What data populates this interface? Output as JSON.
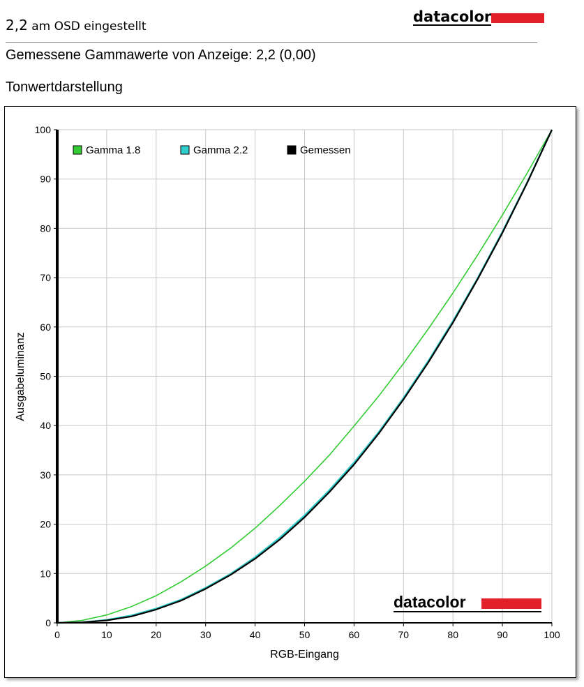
{
  "header": {
    "osd_value": "2,2",
    "osd_text": " am OSD eingestellt",
    "brand": "datacolor",
    "gamma_measured": "Gemessene Gammawerte von Anzeige: 2,2 (0,00)",
    "section_title": "Tonwertdarstellung"
  },
  "chart_data": {
    "type": "line",
    "xlabel": "RGB-Eingang",
    "ylabel": "Ausgabeluminanz",
    "xlim": [
      0,
      100
    ],
    "ylim": [
      0,
      100
    ],
    "xticks": [
      "0",
      "10",
      "20",
      "30",
      "40",
      "50",
      "60",
      "70",
      "80",
      "90",
      "100"
    ],
    "yticks": [
      "0",
      "10",
      "20",
      "30",
      "40",
      "50",
      "60",
      "70",
      "80",
      "90",
      "100"
    ],
    "grid": true,
    "legend_position": "top-left",
    "watermark": "datacolor",
    "x": [
      0,
      5,
      10,
      15,
      20,
      25,
      30,
      35,
      40,
      45,
      50,
      55,
      60,
      65,
      70,
      75,
      80,
      85,
      90,
      95,
      100
    ],
    "series": [
      {
        "name": "Gamma 1.8",
        "color": "#33cc33",
        "values": [
          0,
          0.5,
          1.6,
          3.3,
          5.5,
          8.3,
          11.5,
          15.1,
          19.2,
          23.8,
          28.7,
          34.0,
          39.9,
          46.0,
          52.6,
          59.6,
          66.9,
          74.6,
          82.7,
          91.2,
          100
        ]
      },
      {
        "name": "Gamma 2.2",
        "color": "#33cccc",
        "values": [
          0,
          0.1,
          0.6,
          1.5,
          2.9,
          4.7,
          7.1,
          9.9,
          13.3,
          17.3,
          21.8,
          26.9,
          32.5,
          38.7,
          45.6,
          53.1,
          61.2,
          69.9,
          79.3,
          89.3,
          100
        ]
      },
      {
        "name": "Gemessen",
        "color": "#000000",
        "values": [
          0,
          0.1,
          0.5,
          1.3,
          2.7,
          4.5,
          6.9,
          9.7,
          13.0,
          16.9,
          21.4,
          26.5,
          32.1,
          38.4,
          45.3,
          52.8,
          60.9,
          69.7,
          79.1,
          89.2,
          100
        ]
      }
    ]
  }
}
